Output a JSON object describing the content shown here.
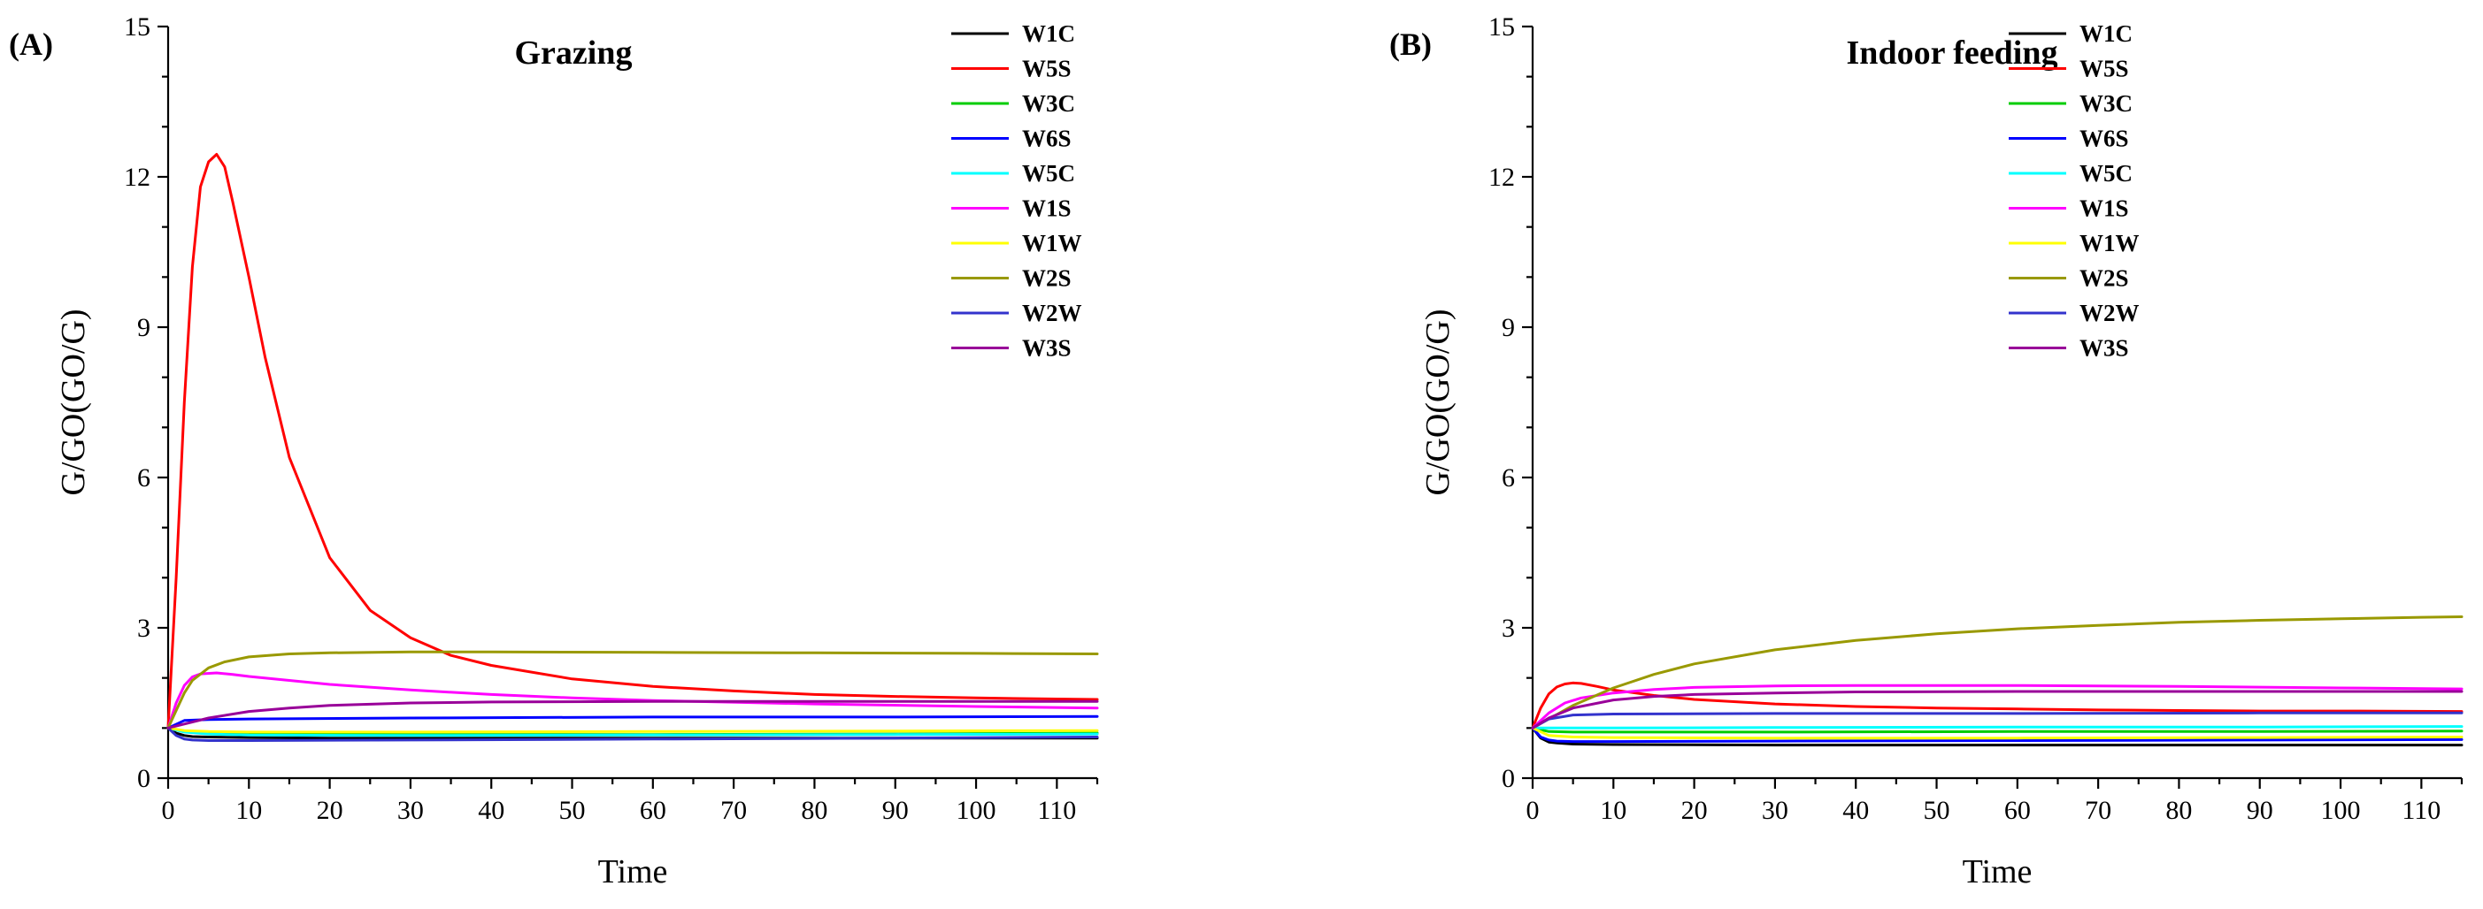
{
  "chart_data": [
    {
      "type": "line",
      "panel_label": "(A)",
      "title": "Grazing",
      "xlabel": "Time",
      "ylabel": "G/GO(GO/G)",
      "xlim": [
        0,
        115
      ],
      "ylim": [
        0,
        15
      ],
      "xticks": [
        0,
        10,
        20,
        30,
        40,
        50,
        60,
        70,
        80,
        90,
        100,
        110
      ],
      "yticks": [
        0,
        3,
        6,
        9,
        12,
        15
      ],
      "legend_position": "top-right",
      "series": [
        {
          "name": "W1C",
          "color": "#000000",
          "x": [
            0,
            1,
            2,
            3,
            5,
            10,
            20,
            40,
            60,
            80,
            100,
            115
          ],
          "y": [
            1.0,
            0.9,
            0.85,
            0.83,
            0.82,
            0.81,
            0.8,
            0.8,
            0.8,
            0.8,
            0.8,
            0.8
          ]
        },
        {
          "name": "W5S",
          "color": "#ff0000",
          "x": [
            0,
            1,
            2,
            3,
            4,
            5,
            6,
            7,
            8,
            10,
            12,
            15,
            20,
            25,
            30,
            35,
            40,
            50,
            60,
            70,
            80,
            90,
            100,
            110,
            115
          ],
          "y": [
            1.0,
            4.0,
            7.5,
            10.2,
            11.8,
            12.3,
            12.45,
            12.2,
            11.5,
            10.0,
            8.4,
            6.4,
            4.4,
            3.35,
            2.8,
            2.45,
            2.25,
            1.98,
            1.83,
            1.74,
            1.67,
            1.63,
            1.6,
            1.58,
            1.57
          ]
        },
        {
          "name": "W3C",
          "color": "#00cc00",
          "x": [
            0,
            2,
            5,
            10,
            30,
            60,
            90,
            115
          ],
          "y": [
            1.0,
            0.93,
            0.9,
            0.88,
            0.87,
            0.87,
            0.88,
            0.9
          ]
        },
        {
          "name": "W6S",
          "color": "#0000ff",
          "x": [
            0,
            2,
            5,
            10,
            30,
            60,
            90,
            115
          ],
          "y": [
            1.0,
            1.15,
            1.17,
            1.18,
            1.2,
            1.22,
            1.22,
            1.23
          ]
        },
        {
          "name": "W5C",
          "color": "#00ffff",
          "x": [
            0,
            2,
            5,
            10,
            30,
            60,
            90,
            115
          ],
          "y": [
            1.0,
            0.92,
            0.88,
            0.86,
            0.85,
            0.86,
            0.87,
            0.88
          ]
        },
        {
          "name": "W1S",
          "color": "#ff00ff",
          "x": [
            0,
            1,
            2,
            3,
            4,
            6,
            8,
            10,
            15,
            20,
            30,
            40,
            50,
            60,
            80,
            100,
            115
          ],
          "y": [
            1.0,
            1.5,
            1.85,
            2.02,
            2.08,
            2.1,
            2.07,
            2.03,
            1.95,
            1.87,
            1.76,
            1.67,
            1.6,
            1.55,
            1.48,
            1.43,
            1.4
          ]
        },
        {
          "name": "W1W",
          "color": "#ffff00",
          "x": [
            0,
            2,
            5,
            10,
            30,
            60,
            90,
            115
          ],
          "y": [
            1.0,
            0.95,
            0.93,
            0.92,
            0.92,
            0.93,
            0.94,
            0.95
          ]
        },
        {
          "name": "W2S",
          "color": "#999900",
          "x": [
            0,
            1,
            2,
            3,
            5,
            7,
            10,
            15,
            20,
            30,
            40,
            60,
            80,
            100,
            115
          ],
          "y": [
            1.0,
            1.35,
            1.7,
            1.95,
            2.2,
            2.32,
            2.42,
            2.48,
            2.5,
            2.52,
            2.52,
            2.51,
            2.5,
            2.49,
            2.48
          ]
        },
        {
          "name": "W2W",
          "color": "#3333cc",
          "x": [
            0,
            1,
            2,
            3,
            5,
            10,
            30,
            60,
            90,
            115
          ],
          "y": [
            1.0,
            0.85,
            0.78,
            0.76,
            0.75,
            0.75,
            0.76,
            0.78,
            0.8,
            0.82
          ]
        },
        {
          "name": "W3S",
          "color": "#990099",
          "x": [
            0,
            2,
            5,
            10,
            15,
            20,
            30,
            40,
            60,
            80,
            100,
            115
          ],
          "y": [
            1.0,
            1.08,
            1.2,
            1.33,
            1.4,
            1.45,
            1.5,
            1.52,
            1.53,
            1.53,
            1.53,
            1.53
          ]
        }
      ]
    },
    {
      "type": "line",
      "panel_label": "(B)",
      "title": "Indoor feeding",
      "xlabel": "Time",
      "ylabel": "G/GO(GO/G)",
      "xlim": [
        0,
        115
      ],
      "ylim": [
        0,
        15
      ],
      "xticks": [
        0,
        10,
        20,
        30,
        40,
        50,
        60,
        70,
        80,
        90,
        100,
        110
      ],
      "yticks": [
        0,
        3,
        6,
        9,
        12,
        15
      ],
      "legend_position": "top-right",
      "series": [
        {
          "name": "W1C",
          "color": "#000000",
          "x": [
            0,
            1,
            2,
            3,
            5,
            10,
            30,
            60,
            90,
            115
          ],
          "y": [
            1.0,
            0.8,
            0.72,
            0.7,
            0.68,
            0.67,
            0.66,
            0.66,
            0.66,
            0.66
          ]
        },
        {
          "name": "W5S",
          "color": "#ff0000",
          "x": [
            0,
            1,
            2,
            3,
            4,
            5,
            6,
            8,
            10,
            15,
            20,
            30,
            40,
            50,
            60,
            70,
            80,
            90,
            100,
            115
          ],
          "y": [
            1.0,
            1.4,
            1.68,
            1.82,
            1.88,
            1.9,
            1.89,
            1.83,
            1.76,
            1.65,
            1.57,
            1.48,
            1.43,
            1.4,
            1.38,
            1.36,
            1.35,
            1.34,
            1.34,
            1.33
          ]
        },
        {
          "name": "W3C",
          "color": "#00cc00",
          "x": [
            0,
            2,
            5,
            10,
            30,
            60,
            90,
            115
          ],
          "y": [
            1.0,
            0.93,
            0.92,
            0.92,
            0.92,
            0.93,
            0.93,
            0.94
          ]
        },
        {
          "name": "W6S",
          "color": "#0000ff",
          "x": [
            0,
            1,
            2,
            3,
            5,
            10,
            30,
            60,
            90,
            115
          ],
          "y": [
            1.0,
            0.82,
            0.76,
            0.74,
            0.73,
            0.73,
            0.74,
            0.75,
            0.76,
            0.77
          ]
        },
        {
          "name": "W5C",
          "color": "#00ffff",
          "x": [
            0,
            2,
            5,
            10,
            30,
            60,
            90,
            115
          ],
          "y": [
            1.0,
            1.0,
            1.0,
            1.0,
            1.01,
            1.02,
            1.02,
            1.03
          ]
        },
        {
          "name": "W1S",
          "color": "#ff00ff",
          "x": [
            0,
            2,
            4,
            6,
            10,
            15,
            20,
            30,
            40,
            60,
            80,
            100,
            115
          ],
          "y": [
            1.0,
            1.3,
            1.5,
            1.6,
            1.7,
            1.77,
            1.81,
            1.84,
            1.85,
            1.85,
            1.83,
            1.8,
            1.78
          ]
        },
        {
          "name": "W1W",
          "color": "#ffff00",
          "x": [
            0,
            2,
            5,
            10,
            30,
            60,
            90,
            115
          ],
          "y": [
            1.0,
            0.85,
            0.82,
            0.81,
            0.8,
            0.8,
            0.81,
            0.82
          ]
        },
        {
          "name": "W2S",
          "color": "#999900",
          "x": [
            0,
            5,
            10,
            15,
            20,
            30,
            40,
            50,
            60,
            70,
            80,
            90,
            100,
            110,
            115
          ],
          "y": [
            1.0,
            1.45,
            1.8,
            2.07,
            2.28,
            2.56,
            2.75,
            2.88,
            2.98,
            3.05,
            3.11,
            3.15,
            3.18,
            3.21,
            3.22
          ]
        },
        {
          "name": "W2W",
          "color": "#3333cc",
          "x": [
            0,
            2,
            5,
            10,
            30,
            60,
            90,
            115
          ],
          "y": [
            1.0,
            1.18,
            1.26,
            1.28,
            1.29,
            1.29,
            1.3,
            1.3
          ]
        },
        {
          "name": "W3S",
          "color": "#990099",
          "x": [
            0,
            2,
            5,
            10,
            15,
            20,
            30,
            40,
            60,
            80,
            100,
            115
          ],
          "y": [
            1.0,
            1.2,
            1.4,
            1.56,
            1.63,
            1.67,
            1.7,
            1.72,
            1.73,
            1.73,
            1.73,
            1.73
          ]
        }
      ]
    }
  ]
}
